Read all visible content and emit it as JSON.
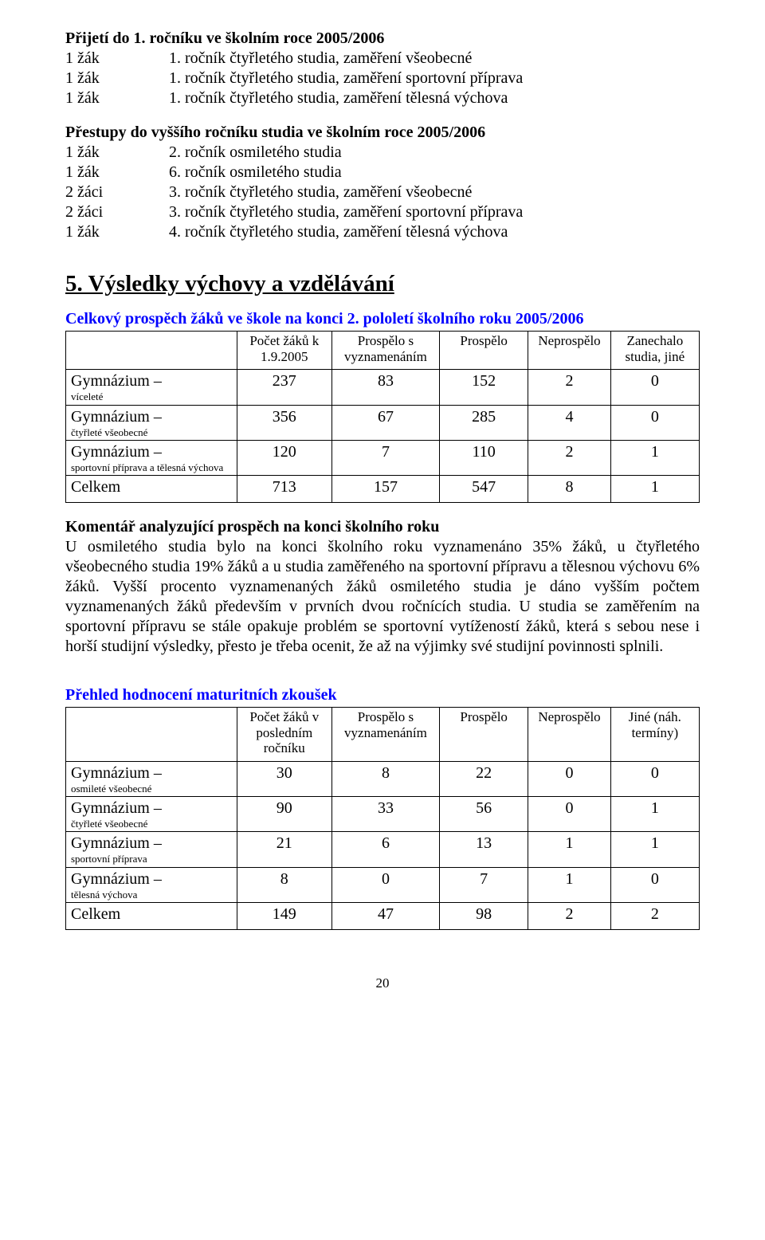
{
  "admission": {
    "heading": "Přijetí do 1. ročníku ve školním roce 2005/2006",
    "rows": [
      {
        "count": "1 žák",
        "text": "1. ročník čtyřletého studia, zaměření všeobecné"
      },
      {
        "count": "1 žák",
        "text": "1. ročník čtyřletého studia, zaměření sportovní příprava"
      },
      {
        "count": "1 žák",
        "text": "1. ročník čtyřletého studia, zaměření tělesná výchova"
      }
    ]
  },
  "transfers": {
    "heading": "Přestupy do vyššího ročníku studia ve školním roce 2005/2006",
    "rows": [
      {
        "count": "1 žák",
        "text": "2. ročník osmiletého studia"
      },
      {
        "count": "1 žák",
        "text": "6. ročník osmiletého studia"
      },
      {
        "count": "2 žáci",
        "text": "3. ročník čtyřletého studia, zaměření všeobecné"
      },
      {
        "count": "2 žáci",
        "text": "3. ročník čtyřletého studia, zaměření sportovní příprava"
      },
      {
        "count": "1 žák",
        "text": "4. ročník čtyřletého studia, zaměření tělesná výchova"
      }
    ]
  },
  "results": {
    "heading": "5. Výsledky výchovy a vzdělávání",
    "table1": {
      "title": "Celkový prospěch žáků ve škole na konci 2. pololetí školního roku 2005/2006",
      "headers": [
        "",
        "Počet žáků k 1.9.2005",
        "Prospělo s vyznamenáním",
        "Prospělo",
        "Neprospělo",
        "Zanechalo studia, jiné"
      ],
      "rows": [
        {
          "label_main": "Gymnázium –",
          "label_sub": "víceleté",
          "vals": [
            "237",
            "83",
            "152",
            "2",
            "0"
          ]
        },
        {
          "label_main": "Gymnázium –",
          "label_sub": "čtyřleté všeobecné",
          "vals": [
            "356",
            "67",
            "285",
            "4",
            "0"
          ]
        },
        {
          "label_main": "Gymnázium –",
          "label_sub": "sportovní příprava a tělesná výchova",
          "vals": [
            "120",
            "7",
            "110",
            "2",
            "1"
          ]
        },
        {
          "label_main": "Celkem",
          "label_sub": "",
          "vals": [
            "713",
            "157",
            "547",
            "8",
            "1"
          ]
        }
      ]
    },
    "commentary": {
      "heading": "Komentář analyzující prospěch na konci školního roku",
      "body": "U osmiletého studia bylo na konci školního roku vyznamenáno 35% žáků, u čtyřletého všeobecného studia 19% žáků a u studia zaměřeného na sportovní přípravu a tělesnou výchovu 6% žáků. Vyšší procento vyznamenaných žáků osmiletého studia je dáno vyšším počtem vyznamenaných žáků především v prvních dvou ročnících studia. U studia se zaměřením na sportovní přípravu se stále opakuje problém se sportovní vytížeností žáků, která s sebou nese i horší studijní výsledky, přesto je třeba ocenit, že až na výjimky své studijní povinnosti splnili."
    },
    "table2": {
      "title": "Přehled hodnocení maturitních zkoušek",
      "headers": [
        "",
        "Počet žáků v posledním ročníku",
        "Prospělo s vyznamenáním",
        "Prospělo",
        "Neprospělo",
        "Jiné (náh. termíny)"
      ],
      "rows": [
        {
          "label_main": "Gymnázium –",
          "label_sub": "osmileté všeobecné",
          "vals": [
            "30",
            "8",
            "22",
            "0",
            "0"
          ]
        },
        {
          "label_main": "Gymnázium –",
          "label_sub": "čtyřleté všeobecné",
          "vals": [
            "90",
            "33",
            "56",
            "0",
            "1"
          ]
        },
        {
          "label_main": "Gymnázium –",
          "label_sub": "sportovní příprava",
          "vals": [
            "21",
            "6",
            "13",
            "1",
            "1"
          ]
        },
        {
          "label_main": "Gymnázium –",
          "label_sub": "tělesná výchova",
          "vals": [
            "8",
            "0",
            "7",
            "1",
            "0"
          ]
        },
        {
          "label_main": "Celkem",
          "label_sub": "",
          "vals": [
            "149",
            "47",
            "98",
            "2",
            "2"
          ]
        }
      ]
    }
  },
  "page_number": "20",
  "col_widths": {
    "t1": [
      "27%",
      "15%",
      "17%",
      "14%",
      "13%",
      "14%"
    ],
    "t2": [
      "27%",
      "15%",
      "17%",
      "14%",
      "13%",
      "14%"
    ]
  },
  "colors": {
    "link_blue": "#0000ff",
    "text": "#000000",
    "border": "#000000",
    "bg": "#ffffff"
  }
}
